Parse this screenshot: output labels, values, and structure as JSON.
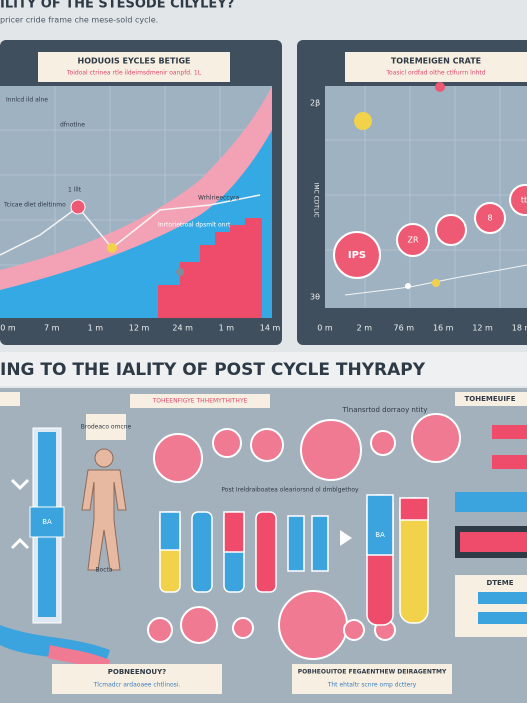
{
  "header": {
    "title": "ILITY OF THE STESODE CILYLEY?",
    "subtitle": "pricer cride frame che mese-sold cycle."
  },
  "left_panel": {
    "title": "HODUOIS EYCLES BETIGE",
    "note": "Toidoal ctrinea rtle ildeimsdmenir oanpfd. 1L",
    "annotations": [
      "Innlcd ild alne",
      "dfnotlne",
      "1 lllt",
      "Tcicae dlet dleltinmo",
      "Wrhlrieeccyra",
      "Inrtorietroal dpsmlt onrt"
    ],
    "x_labels": [
      "0 m",
      "7 m",
      "1 m",
      "12 m",
      "24 m",
      "1 m",
      "14 m"
    ]
  },
  "right_panel": {
    "title": "TOREMEIGEN CRATE",
    "note": "Toasicl ordfad olthe ctlfurrn lnhtd",
    "y_labels": [
      "2β",
      "3θ"
    ],
    "y_axis_label": "IMC CDTLIC",
    "bubble_labels": [
      "IPS",
      "ZR",
      "8",
      "tb"
    ],
    "x_labels": [
      "0 m",
      "2 m",
      "76 m",
      "16 m",
      "12 m",
      "18 m"
    ]
  },
  "section": {
    "title": "ING TO THE IALITY OF POST CYCLE THYRAPY"
  },
  "infographic": {
    "labels": [
      "TOHEENFIGYE THHEMYTHITHYE",
      "Tlnansrtod dorraoy ntity",
      "TOHEMEUIFE",
      "Brodeaco omcne",
      "Post Ireldraiboatea oleariorsnd ol dmblgethoy",
      "Bocta",
      "BA",
      "BA",
      "POBNEENOUY?",
      "POBHEOUITOE FEGAENTHEW DEIRAGENTMY",
      "Tlcmadcr ardaoaee chtlinosi.",
      "Tht ehtaltr scnre omp dcttery",
      "DTEME"
    ]
  }
}
